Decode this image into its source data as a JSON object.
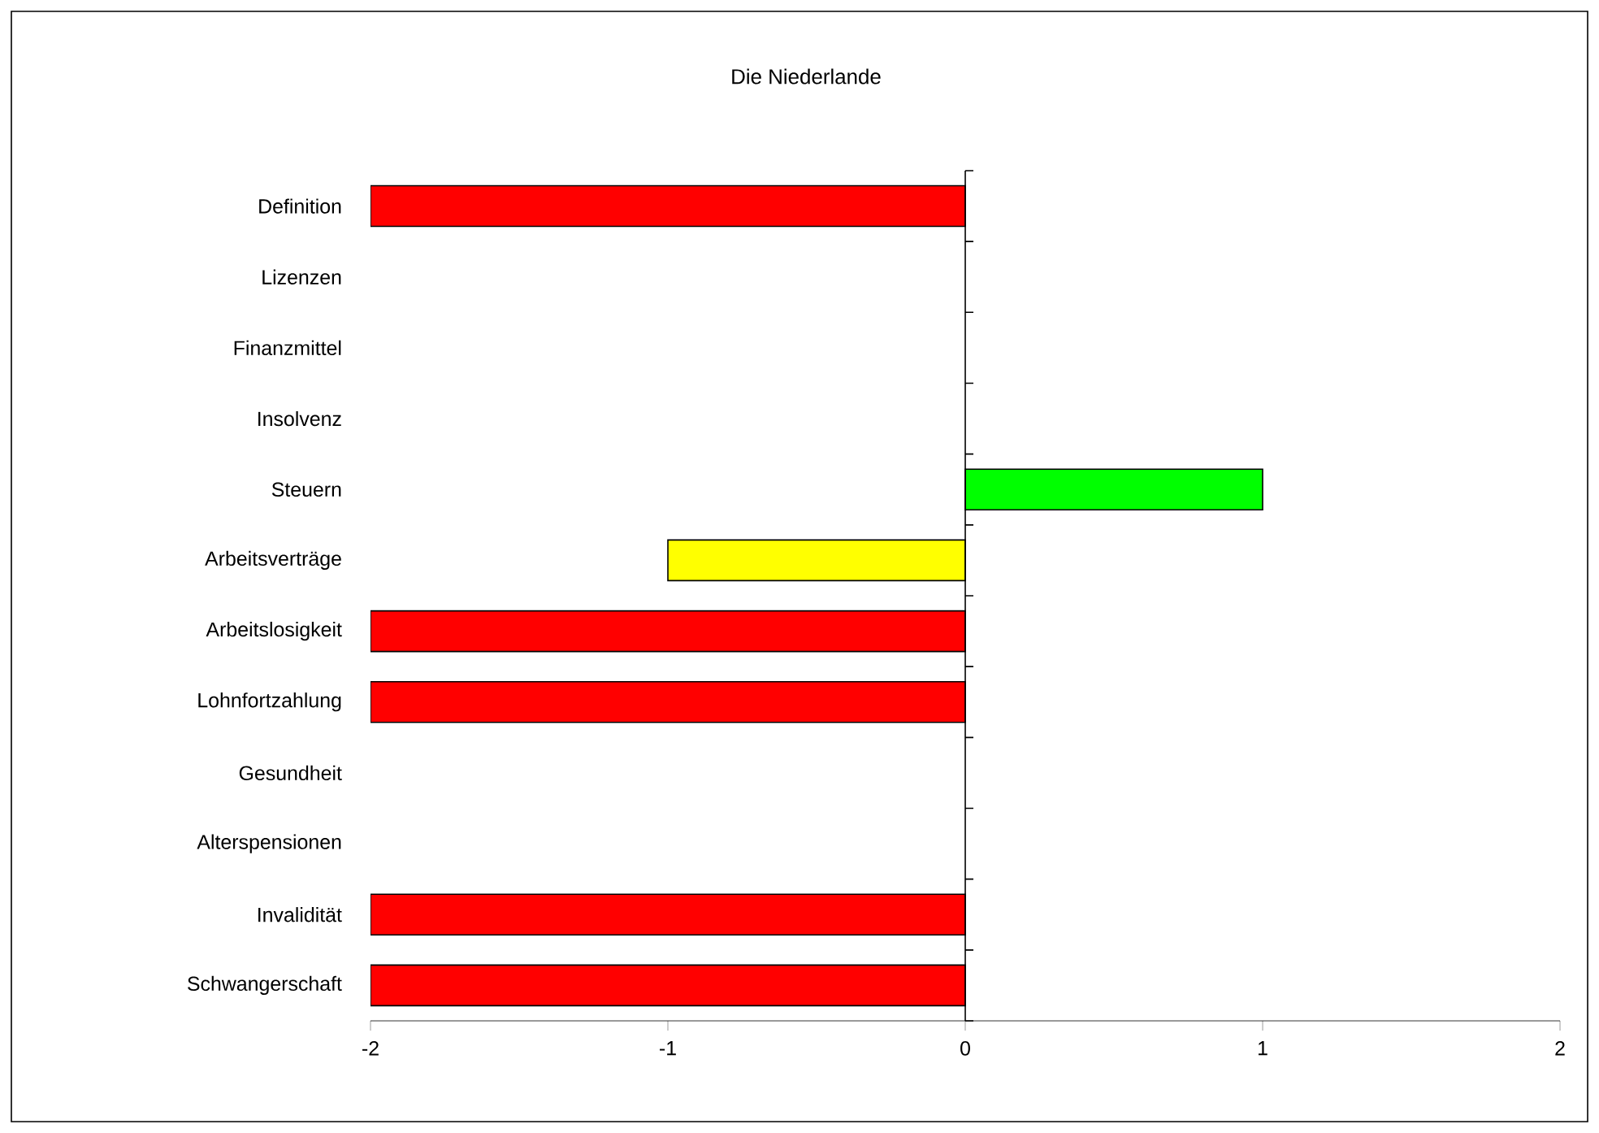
{
  "chart_data": {
    "type": "bar",
    "orientation": "horizontal",
    "title": "Die Niederlande",
    "categories": [
      "Definition",
      "Lizenzen",
      "Finanzmittel",
      "Insolvenz",
      "Steuern",
      "Arbeitsverträge",
      "Arbeitslosigkeit",
      "Lohnfortzahlung",
      "Gesundheit",
      "Alterspensionen",
      "Invalidität",
      "Schwangerschaft"
    ],
    "values": [
      -2,
      0,
      0,
      0,
      1,
      -1,
      -2,
      -2,
      0,
      0,
      -2,
      -2
    ],
    "colors": [
      "#ff0000",
      "#ff0000",
      "#ff0000",
      "#ff0000",
      "#00ff00",
      "#ffff00",
      "#ff0000",
      "#ff0000",
      "#ff0000",
      "#ff0000",
      "#ff0000",
      "#ff0000"
    ],
    "xlim": [
      -2,
      2
    ],
    "xticks": [
      -2,
      -1,
      0,
      1,
      2
    ]
  }
}
